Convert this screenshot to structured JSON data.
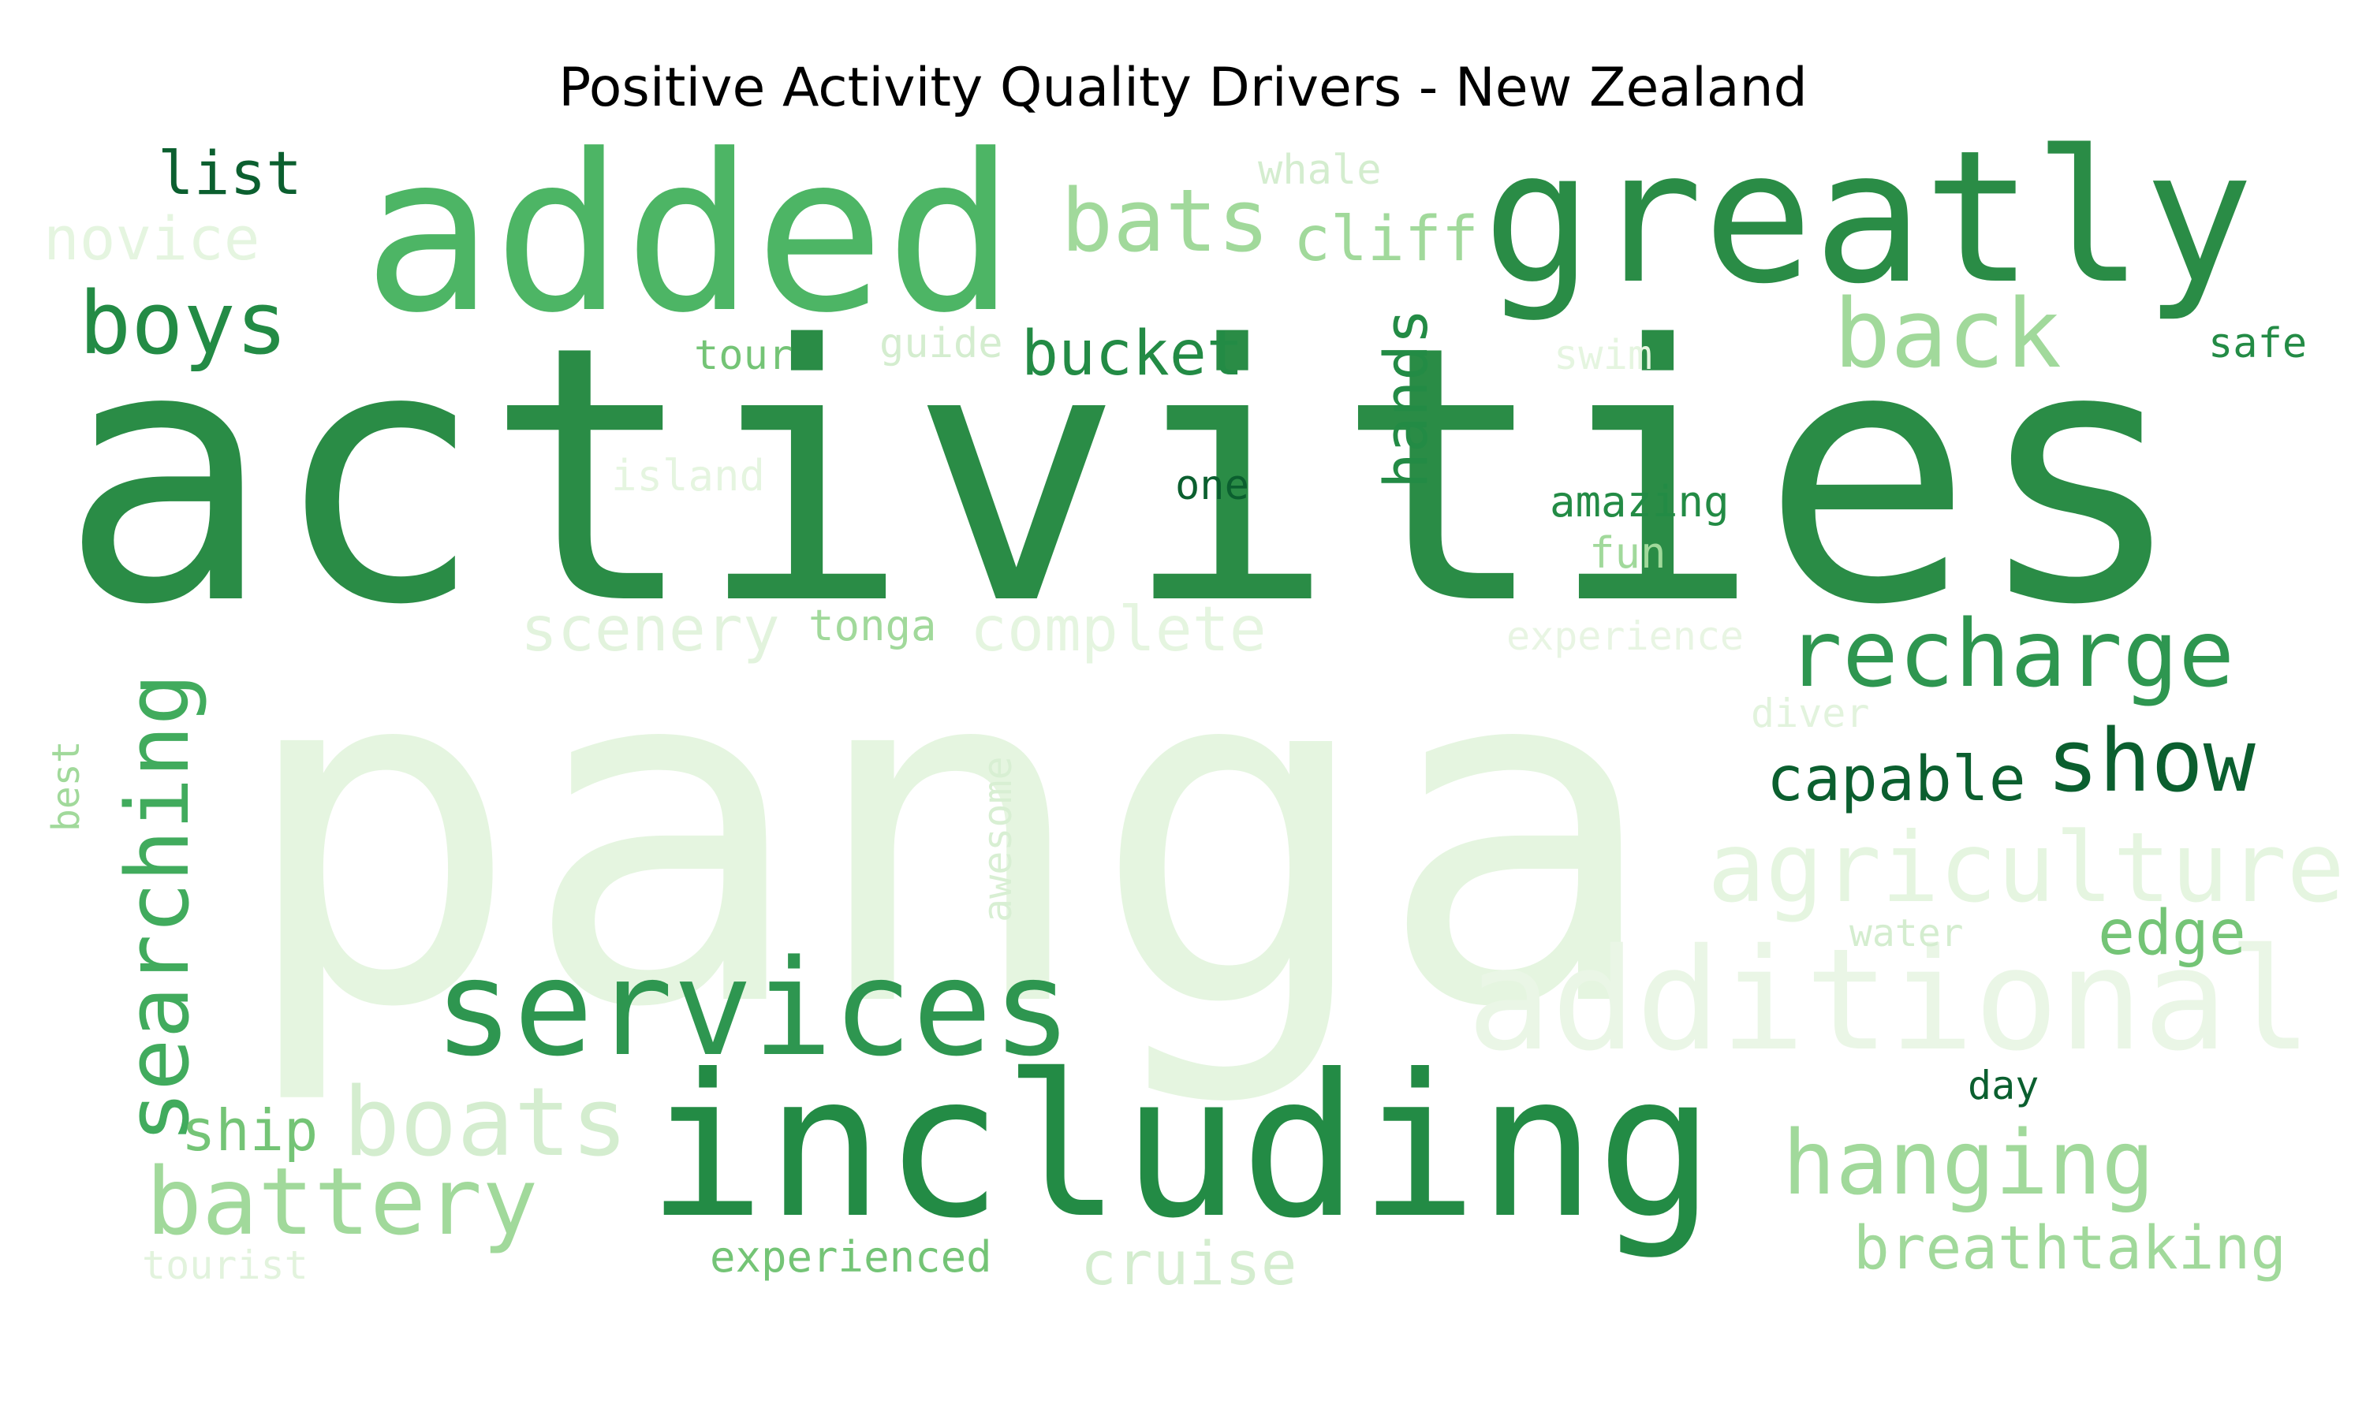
{
  "title": "Positive Activity Quality Drivers - New Zealand",
  "palette": {
    "darkest": "#0b5f2f",
    "dark": "#238b45",
    "mid": "#41ab5d",
    "light": "#74c476",
    "lighter": "#a1d99b",
    "pale": "#c7e9c0",
    "palest": "#e5f5e0"
  },
  "words": [
    "panga",
    "activities",
    "including",
    "added",
    "greatly",
    "services",
    "additional",
    "agriculture",
    "recharge",
    "searching",
    "battery",
    "boats",
    "hanging",
    "boys",
    "back",
    "bats",
    "show",
    "bucket",
    "capable",
    "complete",
    "scenery",
    "cliff",
    "novice",
    "list",
    "breathtaking",
    "edge",
    "cruise",
    "hands",
    "ship",
    "awesome",
    "amazing",
    "tonga",
    "island",
    "experience",
    "fun",
    "one",
    "tour",
    "guide",
    "swim",
    "whale",
    "safe",
    "diver",
    "water",
    "day",
    "best",
    "tourist",
    "experienced"
  ]
}
